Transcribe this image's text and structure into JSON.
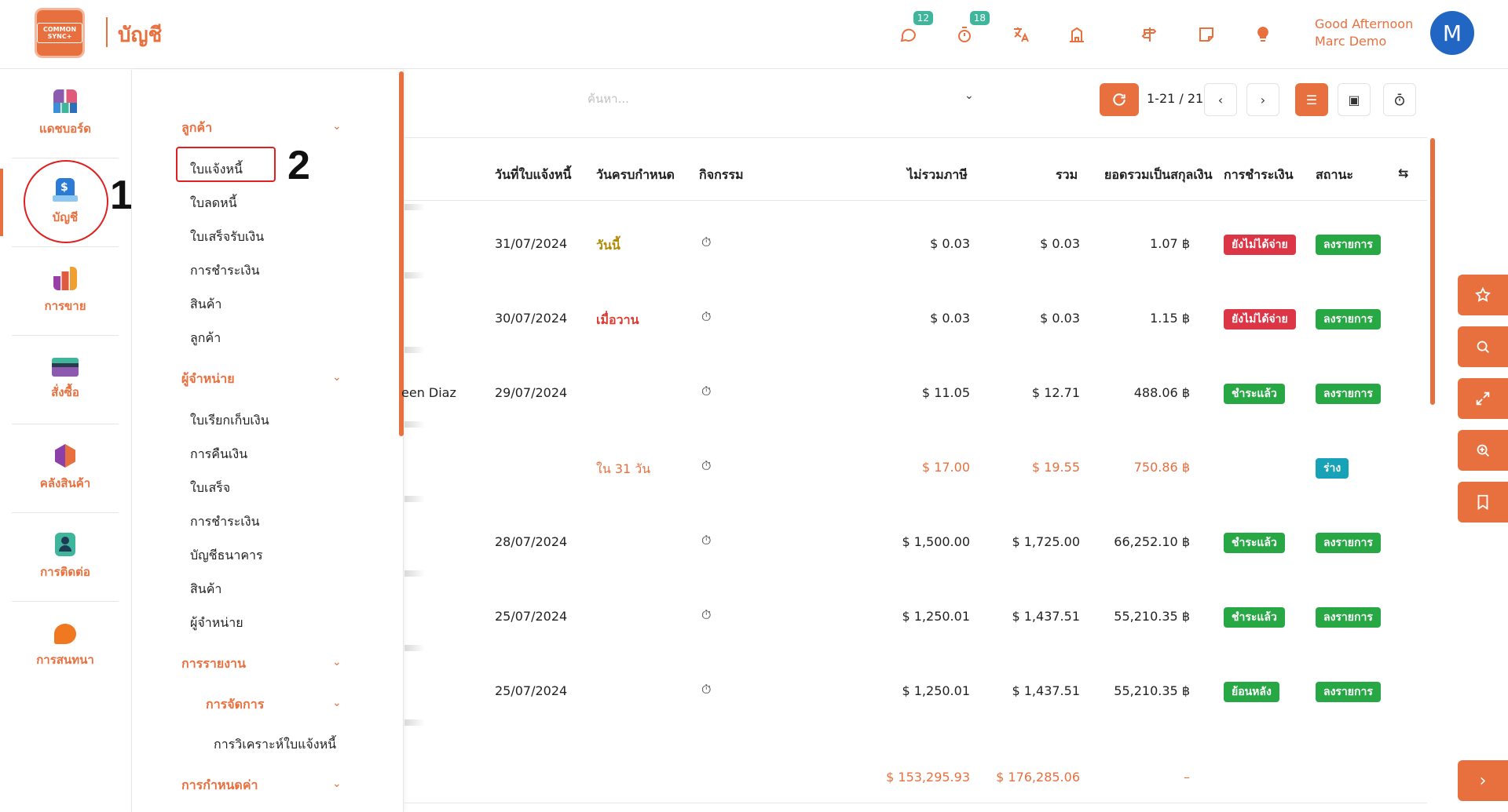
{
  "header": {
    "logo_text": "COMMON SYNC+",
    "app_title": "บัญชี",
    "chat_badge": "12",
    "timer_badge": "18",
    "greeting_line1": "Good Afternoon",
    "greeting_line2": "Marc Demo",
    "avatar_letter": "M"
  },
  "rail": {
    "items": [
      {
        "label": "แดชบอร์ด"
      },
      {
        "label": "บัญชี"
      },
      {
        "label": "การขาย"
      },
      {
        "label": "สั่งซื้อ"
      },
      {
        "label": "คลังสินค้า"
      },
      {
        "label": "การติดต่อ"
      },
      {
        "label": "การสนทนา"
      }
    ]
  },
  "annotations": {
    "step1": "1",
    "step2": "2"
  },
  "submenu": {
    "customers_header": "ลูกค้า",
    "customers_items": [
      "ใบแจ้งหนี้",
      "ใบลดหนี้",
      "ใบเสร็จรับเงิน",
      "การชำระเงิน",
      "สินค้า",
      "ลูกค้า"
    ],
    "vendors_header": "ผู้จำหน่าย",
    "vendors_items": [
      "ใบเรียกเก็บเงิน",
      "การคืนเงิน",
      "ใบเสร็จ",
      "การชำระเงิน",
      "บัญชีธนาคาร",
      "สินค้า",
      "ผู้จำหน่าย"
    ],
    "reports_header": "การรายงาน",
    "management_header": "การจัดการ",
    "management_items": [
      "การวิเคราะห์ใบแจ้งหนี้"
    ],
    "config_header": "การกำหนดค่า"
  },
  "controls": {
    "search_placeholder": "ค้นหา...",
    "pager": "1-21 / 21"
  },
  "table": {
    "columns": [
      "วันที่ใบแจ้งหนี้",
      "วันครบกำหนด",
      "กิจกรรม",
      "ไม่รวมภาษี",
      "รวม",
      "ยอดรวมเป็นสกุลเงิน",
      "การชำระเงิน",
      "สถานะ"
    ],
    "rows": [
      {
        "partner": "",
        "date": "31/07/2024",
        "due": "วันนี้",
        "untaxed": "$ 0.03",
        "total": "$ 0.03",
        "currency_total": "1.07 ฿",
        "payment": "ยังไม่ได้จ่าย",
        "status": "ลงรายการ"
      },
      {
        "partner": "",
        "date": "30/07/2024",
        "due": "เมื่อวาน",
        "untaxed": "$ 0.03",
        "total": "$ 0.03",
        "currency_total": "1.15 ฿",
        "payment": "ยังไม่ได้จ่าย",
        "status": "ลงรายการ"
      },
      {
        "partner": "een Diaz",
        "date": "29/07/2024",
        "due": "",
        "untaxed": "$ 11.05",
        "total": "$ 12.71",
        "currency_total": "488.06 ฿",
        "payment": "ชำระแล้ว",
        "status": "ลงรายการ"
      },
      {
        "partner": "",
        "date": "",
        "due": "ใน 31 วัน",
        "untaxed": "$ 17.00",
        "total": "$ 19.55",
        "currency_total": "750.86 ฿",
        "payment": "",
        "status": "ร่าง"
      },
      {
        "partner": "",
        "date": "28/07/2024",
        "due": "",
        "untaxed": "$ 1,500.00",
        "total": "$ 1,725.00",
        "currency_total": "66,252.10 ฿",
        "payment": "ชำระแล้ว",
        "status": "ลงรายการ"
      },
      {
        "partner": "",
        "date": "25/07/2024",
        "due": "",
        "untaxed": "$ 1,250.01",
        "total": "$ 1,437.51",
        "currency_total": "55,210.35 ฿",
        "payment": "ชำระแล้ว",
        "status": "ลงรายการ"
      },
      {
        "partner": "",
        "date": "25/07/2024",
        "due": "",
        "untaxed": "$ 1,250.01",
        "total": "$ 1,437.51",
        "currency_total": "55,210.35 ฿",
        "payment": "ย้อนหลัง",
        "status": "ลงรายการ"
      }
    ],
    "footer": {
      "untaxed": "$ 153,295.93",
      "total": "$ 176,285.06",
      "currency_total": "–"
    }
  },
  "colors": {
    "accent": "#e8703f",
    "paid": "#28a745",
    "unpaid": "#dc3545",
    "draft": "#17a2b8",
    "due_today": "#b08900"
  }
}
